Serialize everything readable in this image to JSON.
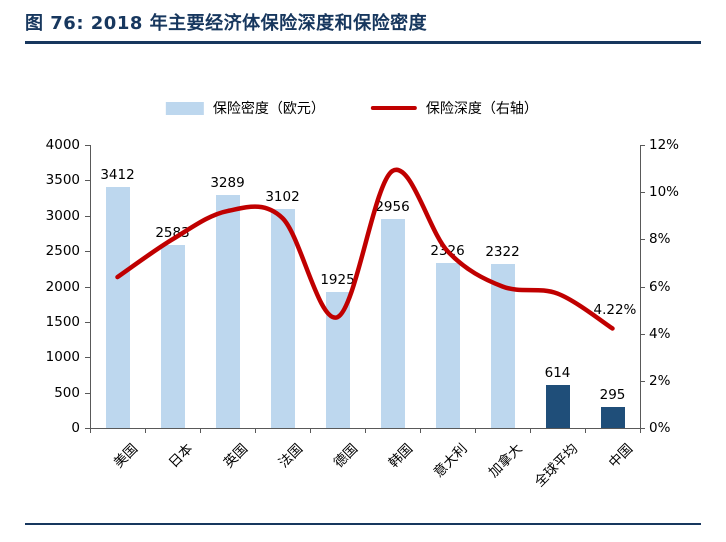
{
  "figure": {
    "title": "图 76:  2018 年主要经济体保险深度和保险密度"
  },
  "legend": {
    "bar_label": "保险密度（欧元）",
    "line_label": "保险深度（右轴）"
  },
  "chart_data": {
    "type": "bar",
    "subtype": "bar-and-line-combo",
    "title": "2018 年主要经济体保险深度和保险密度",
    "categories": [
      "美国",
      "日本",
      "英国",
      "法国",
      "德国",
      "韩国",
      "意大利",
      "加拿大",
      "全球平均",
      "中国"
    ],
    "series": [
      {
        "name": "保险密度（欧元）",
        "type": "bar",
        "axis": "left",
        "values": [
          3412,
          2583,
          3289,
          3102,
          1925,
          2956,
          2326,
          2322,
          614,
          295
        ],
        "colors": [
          "#BDD7EE",
          "#BDD7EE",
          "#BDD7EE",
          "#BDD7EE",
          "#BDD7EE",
          "#BDD7EE",
          "#BDD7EE",
          "#BDD7EE",
          "#1F4E79",
          "#1F4E79"
        ]
      },
      {
        "name": "保险深度（右轴）",
        "type": "line",
        "axis": "right",
        "color": "#C00000",
        "values": [
          6.4,
          8.0,
          9.2,
          8.9,
          4.7,
          10.9,
          7.5,
          6.0,
          5.7,
          4.22
        ]
      }
    ],
    "bar_value_labels": [
      "3412",
      "2583",
      "3289",
      "3102",
      "1925",
      "2956",
      "2326",
      "2322",
      "614",
      "295"
    ],
    "left_axis": {
      "min": 0,
      "max": 4000,
      "step": 500,
      "tick_labels_top_down": [
        "4000",
        "3500",
        "3000",
        "2500",
        "2000",
        "1500",
        "1000",
        "500",
        "0"
      ]
    },
    "right_axis": {
      "min": 0,
      "max": 12,
      "step": 2,
      "tick_labels_top_down": [
        "12%",
        "10%",
        "8%",
        "6%",
        "4%",
        "2%",
        "0%"
      ]
    },
    "annotation": {
      "text": "4.22%",
      "attached_to": "中国"
    },
    "grid": false,
    "legend_position": "top-center"
  },
  "colors": {
    "title": "#17375E",
    "rule": "#17375E",
    "bar_light": "#BDD7EE",
    "bar_dark": "#1F4E79",
    "line": "#C00000",
    "axis": "#595959",
    "text": "#000000"
  }
}
